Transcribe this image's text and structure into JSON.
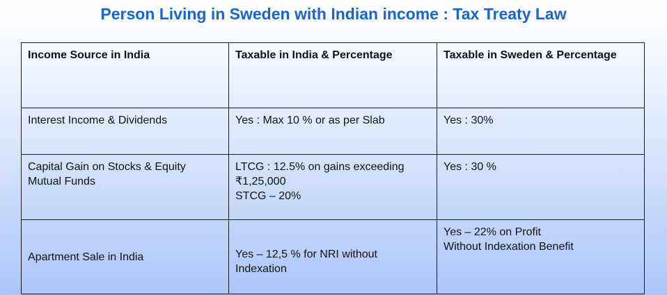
{
  "title": "Person Living in Sweden with Indian income : Tax Treaty Law",
  "table": {
    "headers": [
      "Income Source in India",
      "Taxable in India & Percentage",
      "Taxable in Sweden & Percentage"
    ],
    "rows": [
      {
        "source": "Interest Income & Dividends",
        "india": "Yes : Max 10 % or as per Slab",
        "sweden": "Yes : 30%"
      },
      {
        "source": "Capital Gain on Stocks & Equity Mutual Funds",
        "india": "LTCG : 12.5% on gains exceeding ₹1,25,000\nSTCG – 20%",
        "sweden": "Yes : 30 %"
      },
      {
        "source": "Apartment Sale in India",
        "india": "Yes – 12,5 % for NRI without Indexation",
        "sweden": "Yes – 22% on Profit\nWithout Indexation Benefit"
      }
    ]
  }
}
